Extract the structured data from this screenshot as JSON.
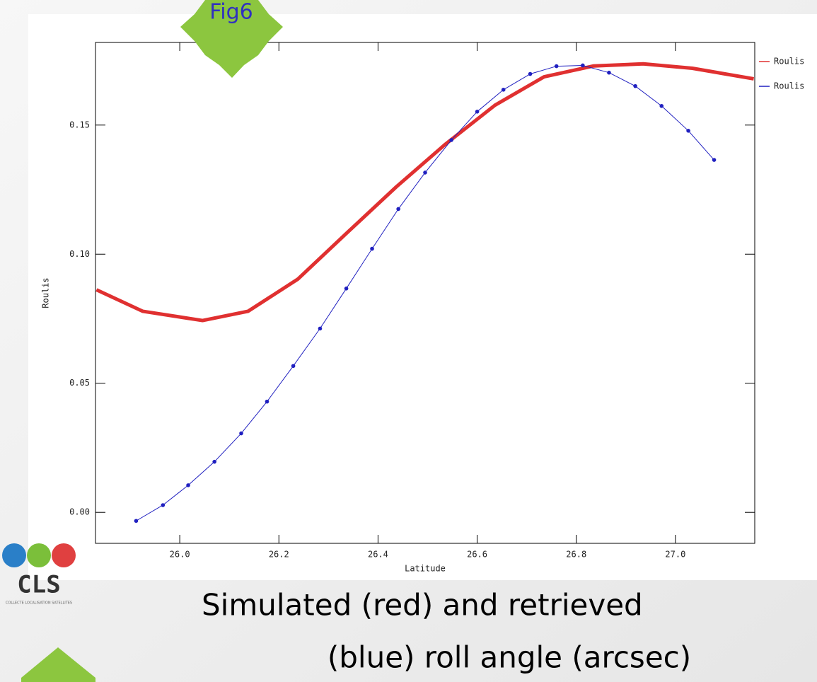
{
  "badge": "Fig6",
  "logo": {
    "name": "CLS",
    "tagline": "COLLECTE LOCALISATION SATELLITES"
  },
  "caption": [
    "Simulated (red) and retrieved",
    "(blue) roll angle (arcsec)"
  ],
  "chart_data": {
    "type": "line",
    "x_label": "Latitude",
    "y_label": "Roulis",
    "xlim": [
      25.83,
      27.16
    ],
    "ylim": [
      -0.012,
      0.182
    ],
    "xticks": [
      {
        "value": 26,
        "label": "26.0"
      },
      26.2,
      26.4,
      26.6,
      26.8,
      {
        "value": 27,
        "label": "27.0"
      }
    ],
    "yticks": [
      {
        "value": 0,
        "label": "0.00"
      },
      0.05,
      {
        "value": 0.1,
        "label": "0.10"
      },
      0.15
    ],
    "legend": "outside-right-top",
    "series": [
      {
        "name": "Roulis",
        "color": "#e03030",
        "line_width": 5,
        "x": [
          25.832,
          25.925,
          26.046,
          26.138,
          26.238,
          26.337,
          26.437,
          26.536,
          26.636,
          26.735,
          26.835,
          26.935,
          27.034,
          27.158
        ],
        "values": [
          0.0862,
          0.0779,
          0.0743,
          0.0779,
          0.0903,
          0.1082,
          0.1261,
          0.1426,
          0.1577,
          0.1687,
          0.1729,
          0.1737,
          0.172,
          0.1679
        ]
      },
      {
        "name": "Roulis",
        "color": "#2020c0",
        "line_width": 1,
        "marker": "circle",
        "x": [
          25.912,
          25.966,
          26.017,
          26.07,
          26.124,
          26.176,
          26.229,
          26.283,
          26.336,
          26.388,
          26.441,
          26.495,
          26.548,
          26.6,
          26.653,
          26.707,
          26.76,
          26.813,
          26.866,
          26.919,
          26.972,
          27.026,
          27.078
        ],
        "values": [
          -0.0033,
          0.0028,
          0.0105,
          0.0196,
          0.0306,
          0.0429,
          0.0567,
          0.0712,
          0.0867,
          0.1021,
          0.1175,
          0.1316,
          0.1442,
          0.1552,
          0.1637,
          0.1698,
          0.1728,
          0.1731,
          0.1703,
          0.1651,
          0.1574,
          0.1478,
          0.1365
        ]
      }
    ]
  }
}
